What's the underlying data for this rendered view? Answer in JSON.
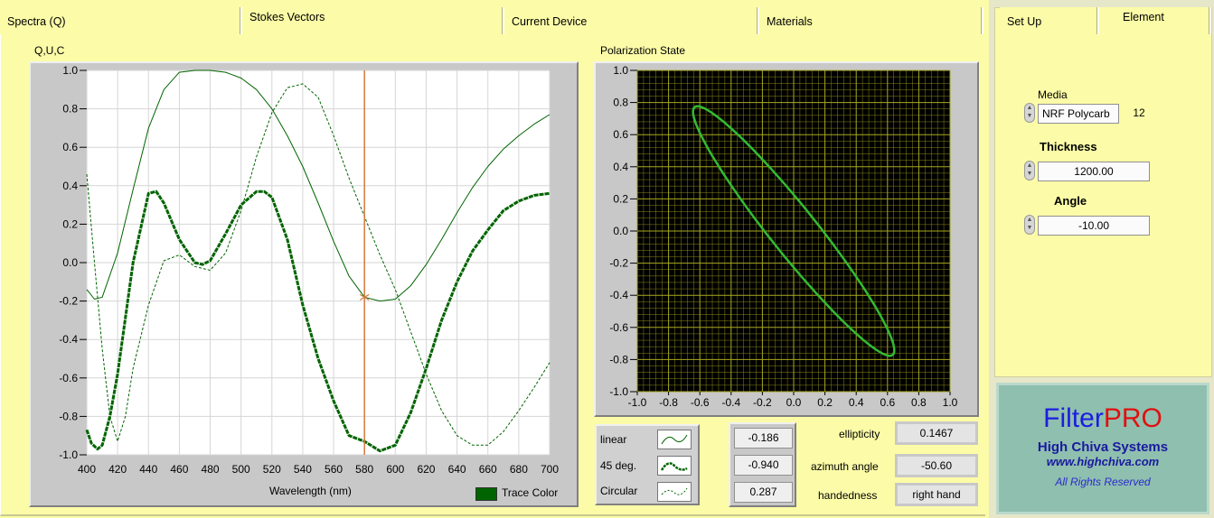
{
  "tabs": [
    {
      "label": "Spectra (Q)"
    },
    {
      "label": "Stokes Vectors"
    },
    {
      "label": "Current Device"
    },
    {
      "label": "Materials"
    }
  ],
  "right_tabs": [
    {
      "label": "Set Up"
    },
    {
      "label": "Element"
    }
  ],
  "spectra_panel": {
    "title": "Q,U,C",
    "xlabel": "Wavelength (nm)",
    "trace_color_label": "Trace Color",
    "trace_color": "#006400",
    "cursor_color": "#d47a3a"
  },
  "polarization_panel": {
    "title": "Polarization State"
  },
  "legend": {
    "items": [
      {
        "label": "linear"
      },
      {
        "label": "45 deg."
      },
      {
        "label": "Circular"
      }
    ]
  },
  "readouts": {
    "values": [
      "-0.186",
      "-0.940",
      "0.287"
    ],
    "ellipticity_label": "ellipticity",
    "ellipticity_value": "0.1467",
    "azimuth_label": "azimuth angle",
    "azimuth_value": "-50.60",
    "handedness_label": "handedness",
    "handedness_value": "right hand"
  },
  "element": {
    "media_label": "Media",
    "media_value": "NRF Polycarb",
    "media_index": "12",
    "thickness_label": "Thickness",
    "thickness_value": "1200.00",
    "angle_label": "Angle",
    "angle_value": "-10.00"
  },
  "logo": {
    "filter": "Filter",
    "pro": "PRO",
    "company": "High Chiva Systems",
    "url": "www.highchiva.com",
    "rights": "All Rights Reserved"
  },
  "chart_data": [
    {
      "type": "line",
      "title": "Q,U,C",
      "xlabel": "Wavelength (nm)",
      "ylabel": "",
      "xlim": [
        400,
        700
      ],
      "ylim": [
        -1.0,
        1.0
      ],
      "x_ticks": [
        "400",
        "420",
        "440",
        "460",
        "480",
        "500",
        "520",
        "540",
        "560",
        "580",
        "600",
        "620",
        "640",
        "660",
        "680",
        "700"
      ],
      "y_ticks": [
        "1.0",
        "0.8",
        "0.6",
        "0.4",
        "0.2",
        "0.0",
        "-0.2",
        "-0.4",
        "-0.6",
        "-0.8",
        "-1.0"
      ],
      "grid": true,
      "cursor_x": 580,
      "series": [
        {
          "style": "solid-thin",
          "x": [
            400,
            405,
            410,
            420,
            430,
            440,
            450,
            460,
            470,
            480,
            490,
            500,
            510,
            520,
            530,
            540,
            550,
            560,
            570,
            580,
            590,
            600,
            610,
            620,
            630,
            640,
            650,
            660,
            670,
            680,
            690,
            700
          ],
          "y": [
            -0.14,
            -0.19,
            -0.18,
            0.05,
            0.38,
            0.7,
            0.9,
            0.99,
            1.0,
            1.0,
            0.99,
            0.96,
            0.9,
            0.8,
            0.66,
            0.5,
            0.31,
            0.11,
            -0.07,
            -0.18,
            -0.2,
            -0.19,
            -0.12,
            -0.01,
            0.12,
            0.26,
            0.39,
            0.5,
            0.59,
            0.66,
            0.72,
            0.77
          ]
        },
        {
          "style": "dashed-thin",
          "x": [
            400,
            405,
            410,
            415,
            420,
            425,
            430,
            440,
            450,
            460,
            470,
            480,
            490,
            500,
            510,
            520,
            530,
            540,
            550,
            560,
            570,
            580,
            590,
            600,
            610,
            620,
            630,
            640,
            650,
            660,
            670,
            680,
            690,
            700
          ],
          "y": [
            0.46,
            0.0,
            -0.45,
            -0.8,
            -0.93,
            -0.8,
            -0.55,
            -0.22,
            0.01,
            0.04,
            -0.02,
            -0.04,
            0.05,
            0.27,
            0.55,
            0.78,
            0.91,
            0.93,
            0.86,
            0.66,
            0.44,
            0.24,
            0.04,
            -0.14,
            -0.36,
            -0.58,
            -0.77,
            -0.9,
            -0.95,
            -0.95,
            -0.88,
            -0.77,
            -0.65,
            -0.52
          ]
        },
        {
          "style": "dashed-thick",
          "x": [
            400,
            403,
            407,
            410,
            415,
            420,
            430,
            440,
            445,
            450,
            460,
            470,
            475,
            480,
            490,
            500,
            510,
            515,
            520,
            530,
            540,
            550,
            560,
            570,
            580,
            590,
            600,
            610,
            620,
            630,
            640,
            650,
            660,
            670,
            680,
            690,
            700
          ],
          "y": [
            -0.87,
            -0.94,
            -0.97,
            -0.95,
            -0.8,
            -0.58,
            0.0,
            0.36,
            0.37,
            0.31,
            0.12,
            0.0,
            -0.01,
            0.01,
            0.15,
            0.3,
            0.37,
            0.37,
            0.34,
            0.12,
            -0.22,
            -0.5,
            -0.72,
            -0.9,
            -0.93,
            -0.98,
            -0.95,
            -0.78,
            -0.55,
            -0.3,
            -0.1,
            0.06,
            0.17,
            0.27,
            0.32,
            0.35,
            0.36
          ]
        }
      ]
    },
    {
      "type": "scatter",
      "title": "Polarization State",
      "xlim": [
        -1.0,
        1.0
      ],
      "ylim": [
        -1.0,
        1.0
      ],
      "x_ticks": [
        "-1.0",
        "-0.8",
        "-0.6",
        "-0.4",
        "-0.2",
        "0.0",
        "0.2",
        "0.4",
        "0.6",
        "0.8",
        "1.0"
      ],
      "y_ticks": [
        "1.0",
        "0.8",
        "0.6",
        "0.4",
        "0.2",
        "0.0",
        "-0.2",
        "-0.4",
        "-0.6",
        "-0.8",
        "-1.0"
      ],
      "grid": true,
      "background": "#000000",
      "grid_color": "#a8a820",
      "trace_color": "#33bb33",
      "ellipse": {
        "center": [
          0.0,
          0.0
        ],
        "semi_major": 0.998,
        "semi_minor": 0.146,
        "azimuth_deg": -50.6
      }
    }
  ]
}
